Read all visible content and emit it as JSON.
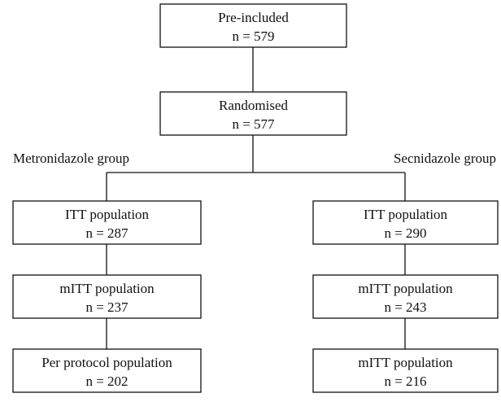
{
  "nodes": [
    {
      "label": "Pre-included",
      "count": "n = 579"
    },
    {
      "label": "Randomised",
      "count": "n = 577"
    },
    {
      "label": "ITT population",
      "count": "n = 287"
    },
    {
      "label": "mITT population",
      "count": "n = 237"
    },
    {
      "label": "Per protocol population",
      "count": "n = 202"
    },
    {
      "label": "ITT population",
      "count": "n = 290"
    },
    {
      "label": "mITT population",
      "count": "n = 243"
    },
    {
      "label": "mITT population",
      "count": "n = 216"
    }
  ],
  "groups": [
    "Metronidazole group",
    "Secnidazole group"
  ]
}
